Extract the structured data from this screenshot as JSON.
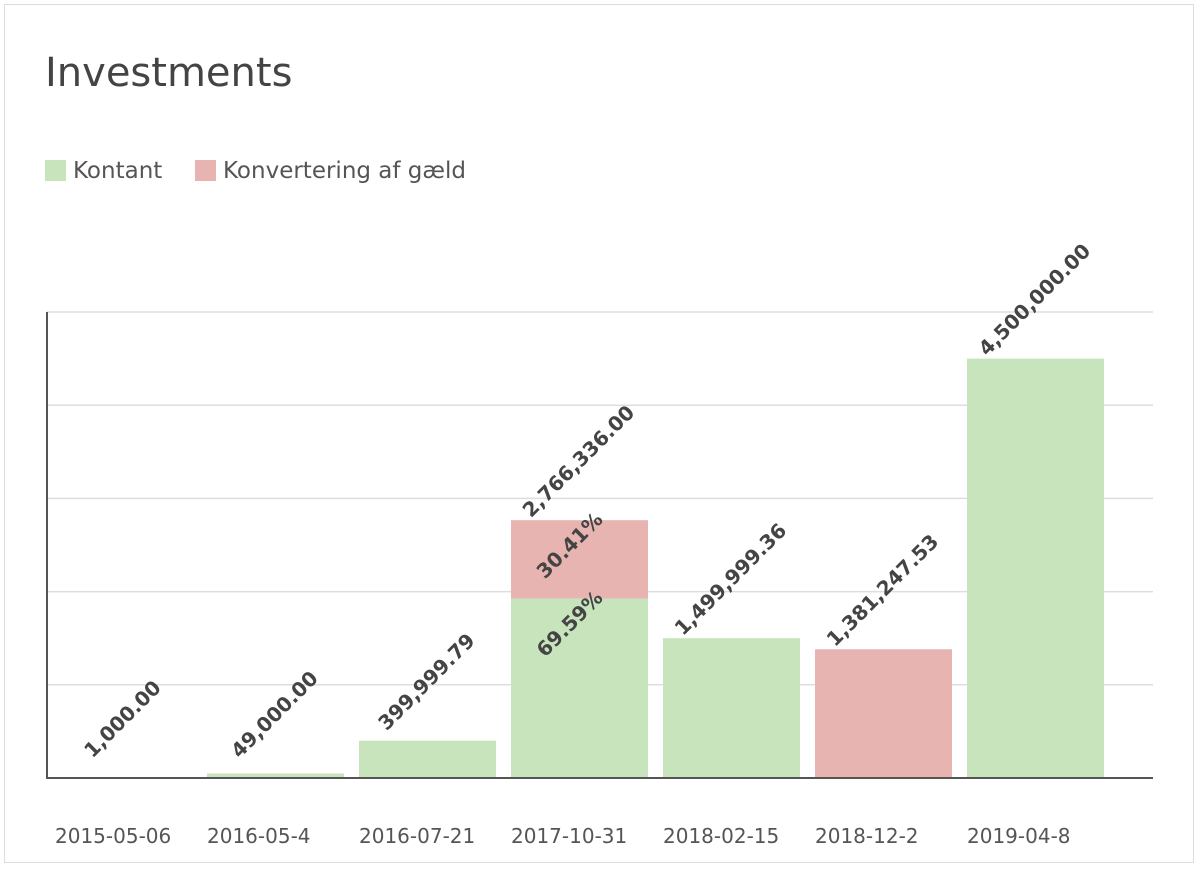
{
  "chart_data": {
    "type": "bar",
    "stacked": true,
    "title": "Investments",
    "xlabel": "",
    "ylabel": "",
    "categories": [
      "2015-05-06",
      "2016-05-4",
      "2016-07-21",
      "2017-10-31",
      "2018-02-15",
      "2018-12-2",
      "2019-04-8"
    ],
    "series": [
      {
        "name": "Kontant",
        "color": "#c8e4bc",
        "values": [
          1000,
          49000,
          399999.79,
          1925119.19,
          1499999.36,
          0,
          4500000
        ]
      },
      {
        "name": "Konvertering af gæld",
        "color": "#e8b4b1",
        "values": [
          0,
          0,
          0,
          841216.81,
          0,
          1381247.53,
          0
        ]
      }
    ],
    "total_labels": [
      "1,000.00",
      "49,000.00",
      "399,999.79",
      "2,766,336.00",
      "1,499,999.36",
      "1,381,247.53",
      "4,500,000.00"
    ],
    "segment_labels": [
      {
        "category_index": 3,
        "series_index": 0,
        "text": "69.59%"
      },
      {
        "category_index": 3,
        "series_index": 1,
        "text": "30.41%"
      }
    ],
    "ylim": [
      0,
      5000000
    ],
    "y_gridlines": [
      1000000,
      2000000,
      3000000,
      4000000,
      5000000
    ],
    "grid": true,
    "legend_position": "top-left"
  }
}
